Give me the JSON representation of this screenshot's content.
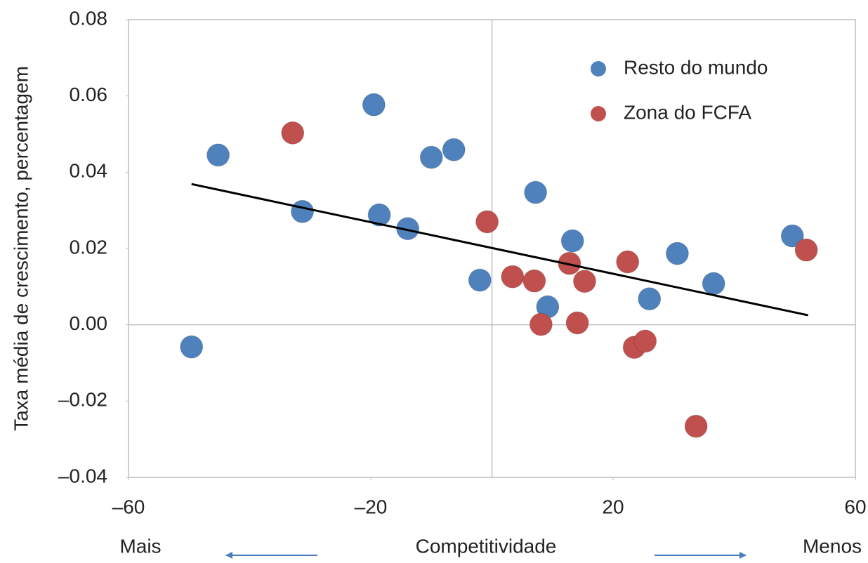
{
  "chart_data": {
    "type": "scatter",
    "y_label": "Taxa média de crescimento, percentagem",
    "x_note_left": "Mais",
    "x_label": "Competitividade",
    "x_note_right": "Menos",
    "xlim": [
      -60,
      60
    ],
    "xticks": [
      {
        "value": -60,
        "label": "–60"
      },
      {
        "value": -20,
        "label": "–20"
      },
      20,
      60
    ],
    "ylim": [
      -0.04,
      0.08
    ],
    "yticks": [
      {
        "value": -0.04,
        "label": "–0.04"
      },
      {
        "value": -0.02,
        "label": "–0.02"
      },
      {
        "value": 0,
        "label": "0.00"
      },
      0.02,
      0.04,
      0.06,
      0.08
    ],
    "legend": "top-right",
    "series": [
      {
        "name": "Resto do mundo",
        "color": "#4f81bd",
        "x": [
          -49.6,
          -45.2,
          -31.3,
          -19.5,
          -18.6,
          -13.9,
          -10.0,
          -6.3,
          -2.0,
          7.2,
          9.2,
          13.3,
          26.0,
          30.6,
          36.6,
          49.6
        ],
        "values": [
          -0.0058,
          0.0445,
          0.0297,
          0.0577,
          0.0288,
          0.0252,
          0.0439,
          0.0459,
          0.0117,
          0.0347,
          0.0047,
          0.022,
          0.0068,
          0.0187,
          0.0108,
          0.0233
        ]
      },
      {
        "name": "Zona do FCFA",
        "color": "#c0504d",
        "x": [
          -32.9,
          -0.8,
          3.4,
          7.0,
          8.1,
          12.8,
          14.1,
          15.3,
          22.4,
          23.5,
          25.3,
          33.7,
          51.9
        ],
        "values": [
          0.0503,
          0.027,
          0.0126,
          0.0115,
          0.0001,
          0.0161,
          0.0005,
          0.0114,
          0.0165,
          -0.0059,
          -0.0043,
          -0.0266,
          0.0196
        ]
      }
    ],
    "trendline": {
      "color": "#000000",
      "x": [
        -49.6,
        52.2
      ],
      "values": [
        0.0369,
        0.0025
      ]
    }
  }
}
